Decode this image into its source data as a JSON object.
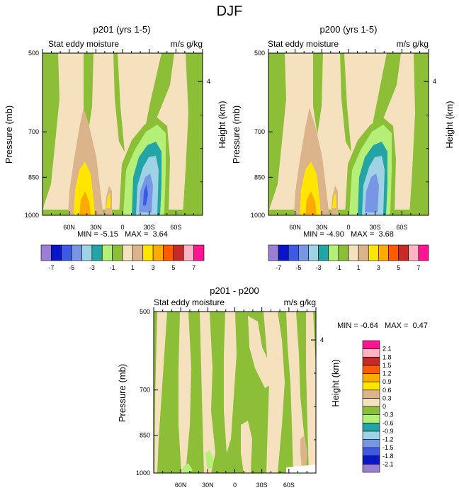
{
  "figure": {
    "title": "DJF"
  },
  "colors": {
    "contour_fills": [
      "#9B7FD6",
      "#0A14C8",
      "#3C5AE6",
      "#7896E6",
      "#A0D2E6",
      "#23A5A5",
      "#B4F078",
      "#8CBE37",
      "#F5E1BE",
      "#DCB48C",
      "#FFE600",
      "#FFAA00",
      "#FF5A00",
      "#C82828",
      "#FFB4C3",
      "#FF1493"
    ],
    "grid": "#000000"
  },
  "panels": [
    {
      "title": "p201 (yrs 1-5)",
      "left_string": "Stat eddy moisture",
      "right_string": "m/s g/kg",
      "y_axis_label": "Pressure (mb)",
      "right_axis_label": "Height (km)",
      "min_max": "MIN = -5.15   MAX =  3.64"
    },
    {
      "title": "p200 (yrs 1-5)",
      "left_string": "Stat eddy moisture",
      "right_string": "m/s g/kg",
      "y_axis_label": "Pressure (mb)",
      "right_axis_label": "Height (km)",
      "min_max": "MIN = -4.90   MAX =  3.68"
    },
    {
      "title": "p201 - p200",
      "left_string": "Stat eddy moisture",
      "right_string": "m/s g/kg",
      "y_axis_label": "Pressure (mb)",
      "right_axis_label": "Height (km)",
      "min_max": "MIN = -0.64   MAX =  0.47"
    }
  ],
  "chart_data": [
    {
      "type": "heatmap",
      "title": "p201 (yrs 1-5)",
      "x_ticks": [
        "60N",
        "30N",
        "0",
        "30S",
        "60S"
      ],
      "x_tick_values": [
        60,
        30,
        0,
        -30,
        -60
      ],
      "xlim": [
        90,
        -90
      ],
      "y_ticks": [
        "500",
        "700",
        "850",
        "1000"
      ],
      "y_tick_values": [
        500,
        700,
        850,
        1000
      ],
      "ylim": [
        1000,
        500
      ],
      "right_ticks": [
        "4"
      ],
      "min": -5.15,
      "max": 3.64,
      "colorbar_levels": [
        -7,
        -6,
        -5,
        -4,
        -3,
        -2,
        -1,
        0,
        1,
        2,
        3,
        4,
        5,
        6,
        7
      ],
      "colorbar_labels": [
        "-7",
        "-5",
        "-3",
        "-1",
        "1",
        "3",
        "5",
        "7"
      ],
      "features": [
        {
          "name": "positive anomaly",
          "lat_center": 35,
          "pressure_range": [
            840,
            1000
          ],
          "peak": 3.64
        },
        {
          "name": "negative anomaly",
          "lat_center": -25,
          "pressure_range": [
            700,
            1000
          ],
          "peak": -5.15
        }
      ]
    },
    {
      "type": "heatmap",
      "title": "p200 (yrs 1-5)",
      "x_ticks": [
        "60N",
        "30N",
        "0",
        "30S",
        "60S"
      ],
      "x_tick_values": [
        60,
        30,
        0,
        -30,
        -60
      ],
      "xlim": [
        90,
        -90
      ],
      "y_ticks": [
        "500",
        "700",
        "850",
        "1000"
      ],
      "y_tick_values": [
        500,
        700,
        850,
        1000
      ],
      "ylim": [
        1000,
        500
      ],
      "right_ticks": [
        "4"
      ],
      "min": -4.9,
      "max": 3.68,
      "colorbar_levels": [
        -7,
        -6,
        -5,
        -4,
        -3,
        -2,
        -1,
        0,
        1,
        2,
        3,
        4,
        5,
        6,
        7
      ],
      "colorbar_labels": [
        "-7",
        "-5",
        "-3",
        "-1",
        "1",
        "3",
        "5",
        "7"
      ],
      "features": [
        {
          "name": "positive anomaly",
          "lat_center": 35,
          "pressure_range": [
            840,
            1000
          ],
          "peak": 3.68
        },
        {
          "name": "negative anomaly",
          "lat_center": -25,
          "pressure_range": [
            700,
            1000
          ],
          "peak": -4.9
        }
      ]
    },
    {
      "type": "heatmap",
      "title": "p201 - p200",
      "x_ticks": [
        "60N",
        "30N",
        "0",
        "30S",
        "60S"
      ],
      "x_tick_values": [
        60,
        30,
        0,
        -30,
        -60
      ],
      "xlim": [
        90,
        -90
      ],
      "y_ticks": [
        "500",
        "700",
        "850",
        "1000"
      ],
      "y_tick_values": [
        500,
        700,
        850,
        1000
      ],
      "ylim": [
        1000,
        500
      ],
      "right_ticks": [
        "4"
      ],
      "min": -0.64,
      "max": 0.47,
      "colorbar_levels": [
        -2.1,
        -1.8,
        -1.5,
        -1.2,
        -0.9,
        -0.6,
        -0.3,
        0,
        0.3,
        0.6,
        0.9,
        1.2,
        1.5,
        1.8,
        2.1
      ],
      "colorbar_labels": [
        "2.1",
        "1.8",
        "1.5",
        "1.2",
        "0.9",
        "0.6",
        "0.3",
        "0",
        "-0.3",
        "-0.6",
        "-0.9",
        "-1.2",
        "-1.5",
        "-1.8",
        "-2.1"
      ]
    }
  ]
}
